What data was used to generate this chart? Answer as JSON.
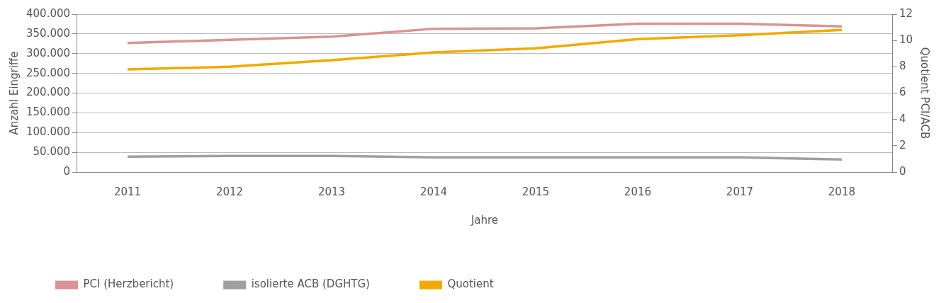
{
  "chart_data": {
    "type": "line",
    "xlabel": "Jahre",
    "ylabel": "Anzahl Eingriffe",
    "y2label": "Quotient PCI/ACB",
    "categories": [
      "2011",
      "2012",
      "2013",
      "2014",
      "2015",
      "2016",
      "2017",
      "2018"
    ],
    "series": [
      {
        "name": "PCI (Herzbericht)",
        "color": "#d89494",
        "values": [
          327000,
          335000,
          343000,
          363000,
          364000,
          376000,
          376000,
          369000
        ]
      },
      {
        "name": "isolierte ACB (DGHTG)",
        "color": "#a0a0a0",
        "values": [
          39000,
          41000,
          41000,
          37000,
          37000,
          37000,
          37000,
          32000
        ]
      },
      {
        "name": "Quotient",
        "color": "#f2a900",
        "axis": "y2",
        "values": [
          7.8,
          8.0,
          8.5,
          9.1,
          9.4,
          10.1,
          10.4,
          10.8
        ]
      }
    ],
    "ylim": [
      0,
      400000
    ],
    "yticks": [
      {
        "value": 0,
        "label": "0"
      },
      {
        "value": 50000,
        "label": "50.000"
      },
      {
        "value": 100000,
        "label": "100.000"
      },
      {
        "value": 150000,
        "label": "150.000"
      },
      {
        "value": 200000,
        "label": "200.000"
      },
      {
        "value": 250000,
        "label": "250.000"
      },
      {
        "value": 300000,
        "label": "300.000"
      },
      {
        "value": 350000,
        "label": "350.000"
      },
      {
        "value": 400000,
        "label": "400.000"
      }
    ],
    "y2lim": [
      0,
      12
    ],
    "y2ticks": [
      0,
      2,
      4,
      6,
      8,
      10,
      12
    ],
    "grid": "y",
    "legend": "bottom left",
    "marker": "none",
    "line_style": "solid"
  }
}
